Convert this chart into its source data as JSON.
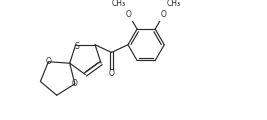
{
  "bg_color": "#ffffff",
  "line_color": "#2a2a2a",
  "text_color": "#2a2a2a",
  "figsize": [
    2.67,
    1.2
  ],
  "dpi": 100,
  "lw": 0.85,
  "fs": 5.5,
  "xlim": [
    0,
    267
  ],
  "ylim": [
    0,
    120
  ]
}
